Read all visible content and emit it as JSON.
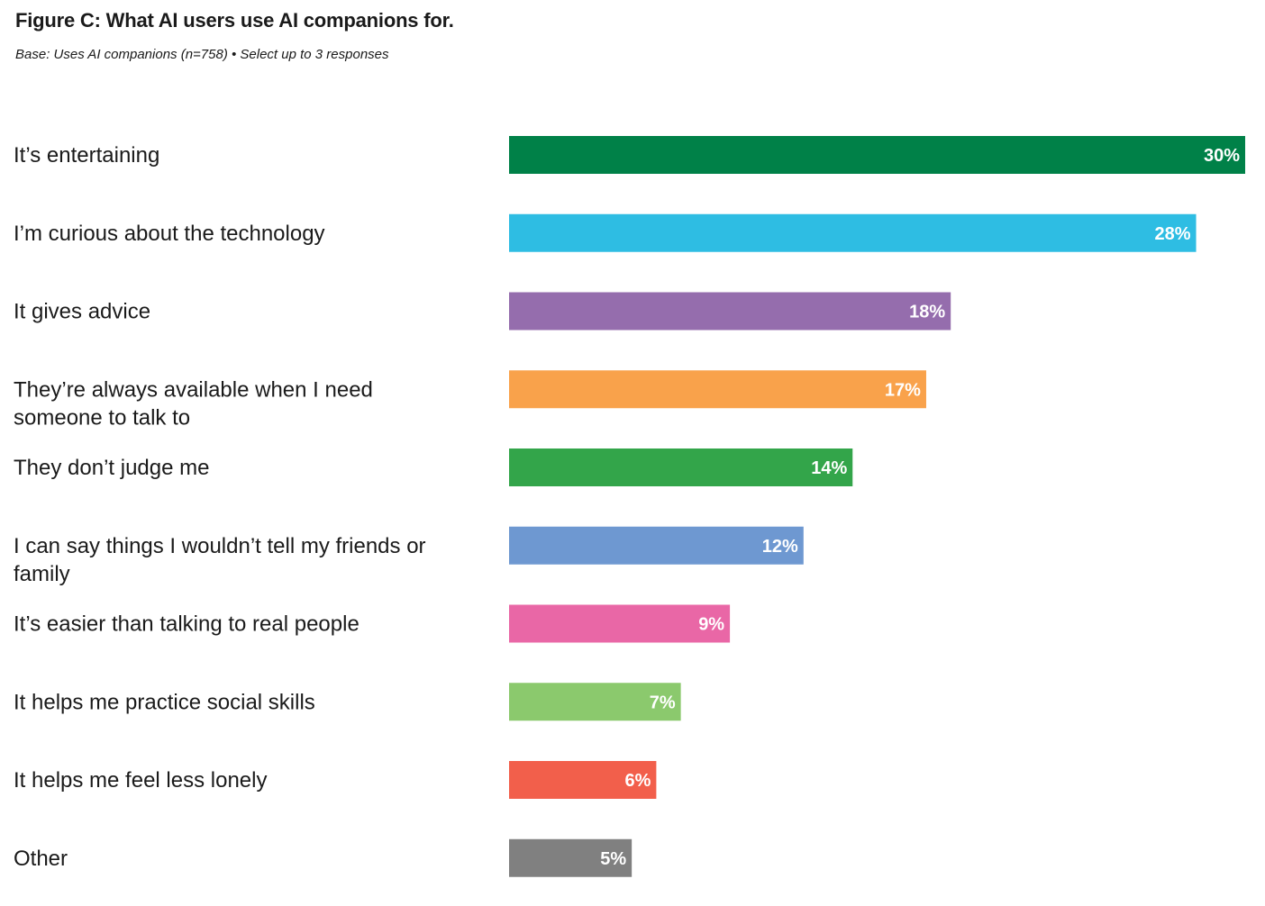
{
  "title": "Figure C: What AI users use AI companions for.",
  "subtitle": "Base: Uses AI companions (n=758) • Select up to 3 responses",
  "chart_data": {
    "type": "bar",
    "orientation": "horizontal",
    "title": "Figure C: What AI users use AI companions for.",
    "subtitle": "Base: Uses AI companions (n=758) • Select up to 3 responses",
    "unit": "%",
    "xlim": [
      0,
      30
    ],
    "grid": false,
    "legend": "none",
    "categories": [
      "It’s entertaining",
      "I’m curious about the technology",
      "It gives advice",
      "They’re always available when I need someone to talk to",
      "They don’t judge me",
      "I can say things I wouldn’t tell my friends or family",
      "It’s easier than talking to real people",
      "It helps me practice social skills",
      "It helps me feel less lonely",
      "Other"
    ],
    "category_lines": [
      [
        "It’s entertaining"
      ],
      [
        "I’m curious about the technology"
      ],
      [
        "It gives advice"
      ],
      [
        "They’re always available when I need",
        "someone to talk to"
      ],
      [
        "They don’t judge me"
      ],
      [
        "I can say things I wouldn’t tell my friends or",
        "family"
      ],
      [
        "It’s easier than talking to real people"
      ],
      [
        "It helps me practice social skills"
      ],
      [
        "It helps me feel less lonely"
      ],
      [
        "Other"
      ]
    ],
    "values": [
      30,
      28,
      18,
      17,
      14,
      12,
      9,
      7,
      6,
      5
    ],
    "value_labels": [
      "30%",
      "28%",
      "18%",
      "17%",
      "14%",
      "12%",
      "9%",
      "7%",
      "6%",
      "5%"
    ],
    "colors": [
      "#008148",
      "#2EBDE3",
      "#956DAD",
      "#F9A24B",
      "#33A54A",
      "#6E98D1",
      "#E967A6",
      "#8BC96D",
      "#F25F4B",
      "#808080"
    ]
  }
}
